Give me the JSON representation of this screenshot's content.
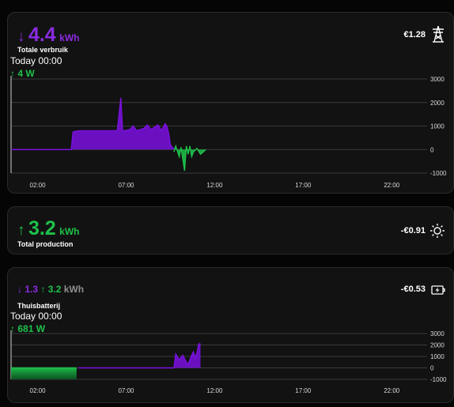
{
  "consumption": {
    "arrow": "↓",
    "value": "4.4",
    "unit": "kWh",
    "label": "Totale verbruik",
    "period": "Today 00:00",
    "power_arrow": "↑",
    "power": "4 W",
    "cost": "€1.28",
    "icon": "power-pylon-icon"
  },
  "production": {
    "arrow": "↑",
    "value": "3.2",
    "unit": "kWh",
    "label": "Total production",
    "cost": "-€0.91",
    "icon": "sun-icon"
  },
  "battery": {
    "charge_arrow": "↓",
    "charge": "1.3",
    "discharge_arrow": "↑",
    "discharge": "3.2",
    "unit": "kWh",
    "label": "Thuisbatterij",
    "period": "Today 00:00",
    "power_arrow": "↑",
    "power": "681 W",
    "cost": "-€0.53",
    "icon": "battery-charging-icon"
  },
  "colors": {
    "consumption": "#7b10e0",
    "production": "#1ec14a",
    "background": "#121212"
  },
  "chart_data": [
    {
      "type": "area",
      "x_ticks": [
        "02:00",
        "07:00",
        "12:00",
        "17:00",
        "22:00"
      ],
      "y_ticks": [
        "3000",
        "2000",
        "1000",
        "0",
        "-1000"
      ],
      "ylim": [
        -1000,
        3000
      ],
      "xlim": [
        0.5,
        24
      ],
      "grid": true,
      "series": [
        {
          "color": "#7b10e0",
          "x": [
            0.5,
            3.9,
            4.0,
            4.3,
            5,
            6,
            6.5,
            6.7,
            6.8,
            6.9,
            7.2,
            7.4,
            7.6,
            7.8,
            8.0,
            8.2,
            8.4,
            8.6,
            8.8,
            9.0,
            9.2,
            9.3,
            9.4,
            9.5,
            9.6,
            9.7
          ],
          "y": [
            0,
            0,
            750,
            800,
            800,
            800,
            800,
            2200,
            800,
            800,
            850,
            1000,
            800,
            850,
            900,
            1050,
            850,
            950,
            1050,
            800,
            1100,
            1000,
            700,
            200,
            100,
            50
          ]
        },
        {
          "color": "#1ec14a",
          "x": [
            9.7,
            9.8,
            10,
            10.1,
            10.3,
            10.4,
            10.5,
            10.6,
            10.7,
            10.8,
            11,
            11.2,
            11.5
          ],
          "y": [
            -100,
            150,
            -300,
            100,
            -900,
            150,
            -200,
            150,
            -300,
            -100,
            50,
            -200,
            0
          ]
        }
      ]
    },
    {
      "type": "area",
      "x_ticks": [
        "02:00",
        "07:00",
        "12:00",
        "17:00",
        "22:00"
      ],
      "y_ticks": [
        "3000",
        "2000",
        "1000",
        "0",
        "-1000"
      ],
      "ylim": [
        -1000,
        3000
      ],
      "xlim": [
        0.5,
        24
      ],
      "grid": true,
      "series": [
        {
          "color": "#1ec14a",
          "x": [
            0.5,
            4.2,
            4.3
          ],
          "y": [
            -1000,
            -1000,
            0
          ]
        },
        {
          "color": "#7b10e0",
          "x": [
            4.3,
            9.7,
            9.8,
            10,
            10.2,
            10.4,
            10.5,
            10.6,
            10.7,
            10.8,
            10.9,
            11.0,
            11.1,
            11.2
          ],
          "y": [
            0,
            0,
            1200,
            700,
            1100,
            500,
            300,
            700,
            1100,
            1400,
            900,
            1300,
            2100,
            2100
          ]
        }
      ]
    }
  ]
}
